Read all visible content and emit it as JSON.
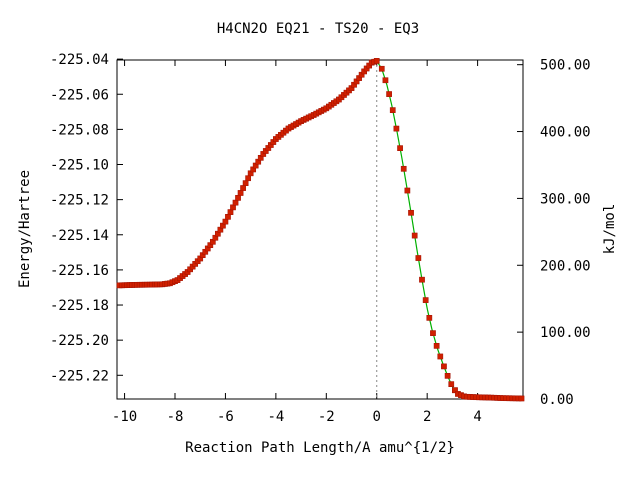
{
  "chart_data": {
    "type": "line",
    "title": "H4CN2O   EQ21 - TS20 - EQ3",
    "xlabel": "Reaction Path Length/A amu^{1/2}",
    "ylabel": "Energy/Hartree",
    "y2label": "kJ/mol",
    "xlim": [
      -10.3,
      5.8
    ],
    "ylim": [
      -225.2335,
      -225.0405
    ],
    "y2lim": [
      0,
      507
    ],
    "x_ticks": [
      "-10",
      "-8",
      "-6",
      "-4",
      "-2",
      "0",
      "2",
      "4"
    ],
    "x_tick_values": [
      -10,
      -8,
      -6,
      -4,
      -2,
      0,
      2,
      4
    ],
    "y_ticks": [
      "-225.04",
      "-225.06",
      "-225.08",
      "-225.10",
      "-225.12",
      "-225.14",
      "-225.16",
      "-225.18",
      "-225.20",
      "-225.22"
    ],
    "y_tick_values": [
      -225.04,
      -225.06,
      -225.08,
      -225.1,
      -225.12,
      -225.14,
      -225.16,
      -225.18,
      -225.2,
      -225.22
    ],
    "y2_ticks": [
      "0.00",
      "100.00",
      "200.00",
      "300.00",
      "400.00",
      "500.00"
    ],
    "y2_tick_values": [
      0,
      100,
      200,
      300,
      400,
      500
    ],
    "ts_marker_x": 0,
    "grid": false,
    "series": [
      {
        "color_line_left": "#d02000",
        "color_line_right": "#00b000",
        "marker_color": "#d02000",
        "x": [
          -10.2,
          -9.5,
          -9.0,
          -8.5,
          -8.2,
          -7.9,
          -7.5,
          -7.0,
          -6.5,
          -6.0,
          -5.5,
          -5.0,
          -4.5,
          -4.0,
          -3.5,
          -3.0,
          -2.5,
          -2.0,
          -1.5,
          -1.0,
          -0.5,
          -0.2,
          0.0,
          0.2,
          0.4,
          0.6,
          0.8,
          1.0,
          1.2,
          1.4,
          1.6,
          1.8,
          2.0,
          2.2,
          2.4,
          2.6,
          2.8,
          3.0,
          3.2,
          3.5,
          4.0,
          4.5,
          5.0,
          5.4,
          5.75
        ],
        "y": [
          -225.1688,
          -225.1685,
          -225.1684,
          -225.1682,
          -225.1676,
          -225.1658,
          -225.1612,
          -225.1535,
          -225.144,
          -225.1325,
          -225.119,
          -225.105,
          -225.094,
          -225.0855,
          -225.0795,
          -225.0753,
          -225.0718,
          -225.068,
          -225.063,
          -225.0565,
          -225.047,
          -225.042,
          -225.041,
          -225.0455,
          -225.0545,
          -225.0665,
          -225.081,
          -225.0965,
          -225.1135,
          -225.131,
          -225.149,
          -225.166,
          -225.182,
          -225.1945,
          -225.2045,
          -225.2125,
          -225.22,
          -225.2265,
          -225.2305,
          -225.2322,
          -225.2325,
          -225.2327,
          -225.233,
          -225.2331,
          -225.2332
        ]
      }
    ]
  }
}
